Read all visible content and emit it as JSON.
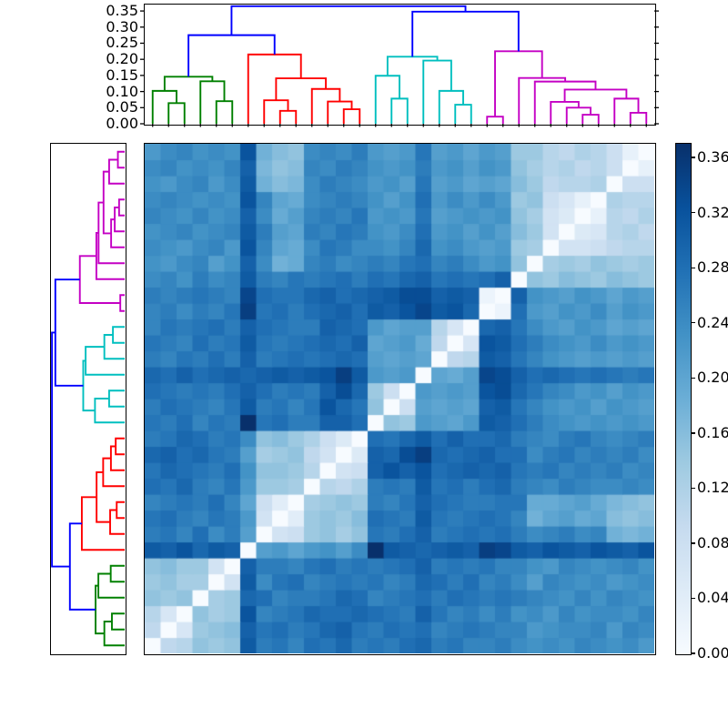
{
  "figure": {
    "background": "#ffffff",
    "link_colors": {
      "B": "#0000ff",
      "G": "#008000",
      "R": "#ff0000",
      "C": "#00bfbf",
      "M": "#c400c4"
    },
    "heatmap_colormap": {
      "name": "Blues",
      "stops": [
        "#f7fbff",
        "#deebf7",
        "#c6dbef",
        "#9ecae1",
        "#6baed6",
        "#4292c6",
        "#2171b5",
        "#08519c",
        "#08306b"
      ]
    }
  },
  "chart_data": {
    "type": "heatmap",
    "description": "Hierarchically clustered symmetric distance matrix with top and left dendrograms and a colorbar",
    "n": 32,
    "vmin": 0.0,
    "vmax": 0.37,
    "cell_size_px": 17.5,
    "row_order": "leaf 1 at bottom row, leaf 32 at top row; columns leaf 1..32 left to right; zero (white) diagonal runs bottom-left to top-right",
    "clusters": {
      "green_leaves": [
        1,
        2,
        3,
        4,
        5,
        6
      ],
      "red_leaves": [
        7,
        8,
        9,
        10,
        11,
        12,
        13,
        14
      ],
      "cyan_leaves": [
        15,
        16,
        17,
        18,
        19,
        20,
        21
      ],
      "magenta_leaves": [
        22,
        23,
        24,
        25,
        26,
        27,
        28,
        29,
        30,
        31,
        32
      ]
    },
    "matrix_lower_triangle": [
      [
        0
      ],
      [
        0.1,
        0
      ],
      [
        0.11,
        0.06,
        0
      ],
      [
        0.15,
        0.14,
        0.15,
        0
      ],
      [
        0.14,
        0.15,
        0.13,
        0.13,
        0
      ],
      [
        0.15,
        0.16,
        0.14,
        0.14,
        0.07,
        0
      ],
      [
        0.31,
        0.3,
        0.32,
        0.29,
        0.31,
        0.3,
        0
      ],
      [
        0.26,
        0.27,
        0.25,
        0.28,
        0.24,
        0.26,
        0.21,
        0
      ],
      [
        0.27,
        0.28,
        0.26,
        0.25,
        0.27,
        0.26,
        0.22,
        0.07,
        0
      ],
      [
        0.25,
        0.26,
        0.27,
        0.26,
        0.28,
        0.25,
        0.2,
        0.08,
        0.04,
        0
      ],
      [
        0.28,
        0.27,
        0.29,
        0.26,
        0.25,
        0.27,
        0.22,
        0.14,
        0.14,
        0.13,
        0
      ],
      [
        0.27,
        0.29,
        0.28,
        0.27,
        0.26,
        0.28,
        0.23,
        0.15,
        0.15,
        0.14,
        0.11,
        0
      ],
      [
        0.29,
        0.3,
        0.28,
        0.29,
        0.27,
        0.26,
        0.21,
        0.13,
        0.14,
        0.15,
        0.1,
        0.07,
        0
      ],
      [
        0.26,
        0.27,
        0.29,
        0.28,
        0.26,
        0.27,
        0.24,
        0.15,
        0.16,
        0.14,
        0.12,
        0.08,
        0.05,
        0
      ],
      [
        0.27,
        0.26,
        0.28,
        0.25,
        0.27,
        0.26,
        0.37,
        0.27,
        0.28,
        0.26,
        0.26,
        0.3,
        0.3,
        0.28,
        0
      ],
      [
        0.26,
        0.28,
        0.27,
        0.26,
        0.25,
        0.27,
        0.31,
        0.26,
        0.27,
        0.25,
        0.27,
        0.32,
        0.29,
        0.27,
        0.15,
        0
      ],
      [
        0.28,
        0.27,
        0.26,
        0.27,
        0.26,
        0.28,
        0.3,
        0.28,
        0.26,
        0.27,
        0.26,
        0.3,
        0.33,
        0.29,
        0.14,
        0.08,
        0
      ],
      [
        0.29,
        0.28,
        0.3,
        0.28,
        0.29,
        0.3,
        0.29,
        0.3,
        0.31,
        0.3,
        0.31,
        0.32,
        0.35,
        0.31,
        0.22,
        0.21,
        0.22,
        0
      ],
      [
        0.26,
        0.25,
        0.27,
        0.26,
        0.28,
        0.26,
        0.3,
        0.26,
        0.27,
        0.28,
        0.27,
        0.28,
        0.29,
        0.28,
        0.21,
        0.2,
        0.21,
        0.2,
        0
      ],
      [
        0.27,
        0.26,
        0.25,
        0.28,
        0.26,
        0.27,
        0.31,
        0.27,
        0.26,
        0.27,
        0.28,
        0.29,
        0.28,
        0.3,
        0.2,
        0.21,
        0.22,
        0.19,
        0.1,
        0
      ],
      [
        0.25,
        0.27,
        0.26,
        0.27,
        0.28,
        0.26,
        0.3,
        0.28,
        0.27,
        0.26,
        0.26,
        0.3,
        0.29,
        0.28,
        0.22,
        0.2,
        0.21,
        0.21,
        0.11,
        0.06,
        0
      ],
      [
        0.25,
        0.26,
        0.24,
        0.26,
        0.25,
        0.27,
        0.35,
        0.27,
        0.28,
        0.26,
        0.28,
        0.29,
        0.3,
        0.28,
        0.31,
        0.3,
        0.32,
        0.34,
        0.31,
        0.32,
        0.29,
        0
      ],
      [
        0.26,
        0.25,
        0.26,
        0.27,
        0.26,
        0.25,
        0.34,
        0.28,
        0.27,
        0.27,
        0.29,
        0.3,
        0.28,
        0.29,
        0.3,
        0.31,
        0.33,
        0.33,
        0.3,
        0.31,
        0.3,
        0.02,
        0
      ],
      [
        0.24,
        0.25,
        0.23,
        0.26,
        0.24,
        0.25,
        0.31,
        0.26,
        0.25,
        0.27,
        0.26,
        0.27,
        0.28,
        0.26,
        0.28,
        0.27,
        0.29,
        0.3,
        0.27,
        0.28,
        0.27,
        0.28,
        0.3,
        0
      ],
      [
        0.23,
        0.22,
        0.24,
        0.25,
        0.21,
        0.23,
        0.3,
        0.24,
        0.18,
        0.19,
        0.25,
        0.26,
        0.24,
        0.25,
        0.26,
        0.25,
        0.27,
        0.28,
        0.25,
        0.26,
        0.24,
        0.22,
        0.23,
        0.15,
        0
      ],
      [
        0.24,
        0.23,
        0.22,
        0.24,
        0.25,
        0.22,
        0.32,
        0.25,
        0.2,
        0.19,
        0.24,
        0.27,
        0.26,
        0.24,
        0.24,
        0.23,
        0.25,
        0.29,
        0.23,
        0.24,
        0.22,
        0.21,
        0.22,
        0.14,
        0.13,
        0
      ],
      [
        0.23,
        0.24,
        0.25,
        0.23,
        0.24,
        0.25,
        0.31,
        0.26,
        0.21,
        0.2,
        0.26,
        0.25,
        0.27,
        0.26,
        0.23,
        0.22,
        0.24,
        0.28,
        0.22,
        0.23,
        0.21,
        0.23,
        0.21,
        0.16,
        0.14,
        0.07,
        0
      ],
      [
        0.25,
        0.24,
        0.23,
        0.25,
        0.23,
        0.24,
        0.3,
        0.24,
        0.19,
        0.21,
        0.25,
        0.26,
        0.25,
        0.27,
        0.22,
        0.23,
        0.22,
        0.27,
        0.21,
        0.22,
        0.23,
        0.22,
        0.23,
        0.15,
        0.13,
        0.07,
        0.05,
        0
      ],
      [
        0.24,
        0.25,
        0.24,
        0.23,
        0.24,
        0.23,
        0.32,
        0.25,
        0.2,
        0.19,
        0.24,
        0.25,
        0.26,
        0.25,
        0.23,
        0.21,
        0.23,
        0.28,
        0.22,
        0.24,
        0.22,
        0.24,
        0.22,
        0.14,
        0.15,
        0.08,
        0.06,
        0.03,
        0
      ],
      [
        0.23,
        0.22,
        0.24,
        0.25,
        0.22,
        0.24,
        0.31,
        0.18,
        0.16,
        0.17,
        0.24,
        0.26,
        0.25,
        0.24,
        0.22,
        0.23,
        0.21,
        0.27,
        0.21,
        0.22,
        0.2,
        0.21,
        0.2,
        0.16,
        0.14,
        0.1,
        0.11,
        0.11,
        0.12,
        0
      ],
      [
        0.24,
        0.25,
        0.23,
        0.24,
        0.23,
        0.25,
        0.3,
        0.17,
        0.15,
        0.16,
        0.25,
        0.24,
        0.26,
        0.25,
        0.23,
        0.22,
        0.23,
        0.26,
        0.22,
        0.23,
        0.21,
        0.23,
        0.22,
        0.15,
        0.13,
        0.11,
        0.12,
        0.1,
        0.11,
        0.08,
        0
      ],
      [
        0.22,
        0.24,
        0.25,
        0.23,
        0.24,
        0.23,
        0.32,
        0.18,
        0.16,
        0.15,
        0.24,
        0.25,
        0.24,
        0.26,
        0.22,
        0.21,
        0.22,
        0.27,
        0.21,
        0.22,
        0.2,
        0.22,
        0.21,
        0.14,
        0.14,
        0.11,
        0.1,
        0.12,
        0.11,
        0.08,
        0.03,
        0
      ]
    ],
    "top_dendrogram": {
      "orientation": "top",
      "ylim": [
        0,
        0.37
      ],
      "yticks": [
        {
          "value": 0.35,
          "label": "0.35"
        },
        {
          "value": 0.3,
          "label": "0.30"
        },
        {
          "value": 0.25,
          "label": "0.25"
        },
        {
          "value": 0.2,
          "label": "0.20"
        },
        {
          "value": 0.15,
          "label": "0.15"
        },
        {
          "value": 0.1,
          "label": "0.10"
        },
        {
          "value": 0.05,
          "label": "0.05"
        },
        {
          "value": 0.0,
          "label": "0.00"
        }
      ],
      "tree": [
        0.365,
        "B",
        [
          0.275,
          "B",
          [
            0.146,
            "G",
            [
              0.102,
              "G",
              1,
              [
                0.064,
                "G",
                2,
                3
              ]
            ],
            [
              0.132,
              "G",
              4,
              [
                0.07,
                "G",
                5,
                6
              ]
            ]
          ],
          [
            0.215,
            "R",
            7,
            [
              0.141,
              "R",
              [
                0.073,
                "R",
                8,
                [
                  0.04,
                  "R",
                  9,
                  10
                ]
              ],
              [
                0.108,
                "R",
                11,
                [
                  0.069,
                  "R",
                  12,
                  [
                    0.045,
                    "R",
                    13,
                    14
                  ]
                ]
              ]
            ]
          ]
        ],
        [
          0.348,
          "B",
          [
            0.208,
            "C",
            [
              0.149,
              "C",
              15,
              [
                0.078,
                "C",
                16,
                17
              ]
            ],
            [
              0.196,
              "C",
              18,
              [
                0.102,
                "C",
                19,
                [
                  0.059,
                  "C",
                  20,
                  21
                ]
              ]
            ]
          ],
          [
            0.225,
            "M",
            [
              0.022,
              "M",
              22,
              23
            ],
            [
              0.142,
              "M",
              24,
              [
                0.131,
                "M",
                25,
                [
                  0.106,
                  "M",
                  [
                    0.068,
                    "M",
                    26,
                    [
                      0.05,
                      "M",
                      27,
                      [
                        0.028,
                        "M",
                        28,
                        29
                      ]
                    ]
                  ],
                  [
                    0.078,
                    "M",
                    30,
                    [
                      0.034,
                      "M",
                      31,
                      32
                    ]
                  ]
                ]
              ]
            ]
          ]
        ]
      ]
    },
    "left_dendrogram": {
      "orientation": "left",
      "xlim": [
        0,
        0.37
      ],
      "same_tree_as": "top_dendrogram",
      "leaf_order": "leaf 1 at bottom, leaf 32 at top"
    },
    "colorbar": {
      "position": "right",
      "range": [
        0.0,
        0.37
      ],
      "ticks": [
        {
          "value": 0.36,
          "label": "0.36"
        },
        {
          "value": 0.32,
          "label": "0.32"
        },
        {
          "value": 0.28,
          "label": "0.28"
        },
        {
          "value": 0.24,
          "label": "0.24"
        },
        {
          "value": 0.2,
          "label": "0.20"
        },
        {
          "value": 0.16,
          "label": "0.16"
        },
        {
          "value": 0.12,
          "label": "0.12"
        },
        {
          "value": 0.08,
          "label": "0.08"
        },
        {
          "value": 0.04,
          "label": "0.04"
        },
        {
          "value": 0.0,
          "label": "0.00"
        }
      ]
    }
  }
}
